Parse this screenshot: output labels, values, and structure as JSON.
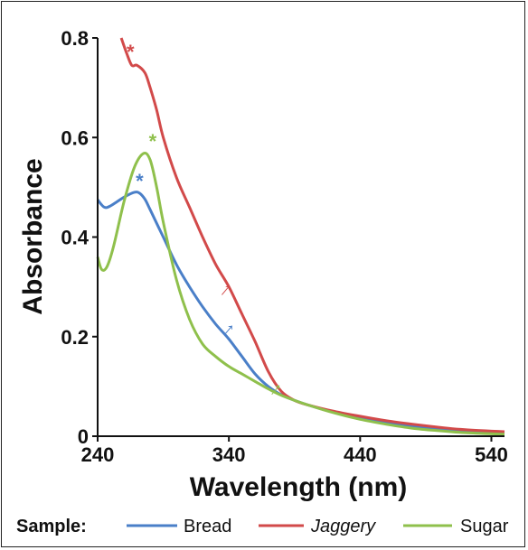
{
  "chart_data": {
    "type": "line",
    "xlabel": "Wavelength (nm)",
    "ylabel": "Absorbance",
    "xlim": [
      240,
      550
    ],
    "ylim": [
      0,
      0.8
    ],
    "xticks": [
      240,
      340,
      440,
      540
    ],
    "xtick_labels": [
      "240",
      "340",
      "440",
      "540"
    ],
    "yticks": [
      0,
      0.2,
      0.4,
      0.6,
      0.8
    ],
    "ytick_labels": [
      "0",
      "0.2",
      "0.4",
      "0.6",
      "0.8"
    ],
    "legend_title": "Sample:",
    "legend_position": "bottom",
    "series": [
      {
        "name": "Bread",
        "color": "#4a7fc8",
        "x": [
          240,
          245,
          250,
          260,
          268,
          272,
          276,
          280,
          290,
          300,
          310,
          320,
          330,
          340,
          350,
          360,
          370,
          380,
          390,
          400,
          420,
          440,
          460,
          480,
          500,
          520,
          550
        ],
        "y": [
          0.475,
          0.46,
          0.463,
          0.48,
          0.49,
          0.488,
          0.476,
          0.455,
          0.4,
          0.345,
          0.3,
          0.26,
          0.225,
          0.195,
          0.16,
          0.125,
          0.1,
          0.083,
          0.072,
          0.063,
          0.048,
          0.037,
          0.027,
          0.02,
          0.014,
          0.01,
          0.006
        ],
        "annotations": [
          {
            "label": "*",
            "x": 272,
            "y": 0.495
          },
          {
            "label": "↑",
            "x": 337,
            "y": 0.205
          }
        ]
      },
      {
        "name": "Jaggery",
        "color": "#d24a4a",
        "x": [
          258,
          262,
          266,
          270,
          276,
          280,
          285,
          290,
          300,
          310,
          320,
          330,
          340,
          350,
          360,
          370,
          380,
          390,
          400,
          420,
          440,
          460,
          480,
          500,
          520,
          550
        ],
        "y": [
          0.8,
          0.77,
          0.745,
          0.745,
          0.73,
          0.7,
          0.655,
          0.6,
          0.52,
          0.46,
          0.4,
          0.345,
          0.3,
          0.245,
          0.19,
          0.13,
          0.09,
          0.072,
          0.063,
          0.05,
          0.04,
          0.031,
          0.024,
          0.018,
          0.013,
          0.009
        ],
        "annotations": [
          {
            "label": "*",
            "x": 265,
            "y": 0.755
          },
          {
            "label": "↑",
            "x": 335,
            "y": 0.285
          }
        ]
      },
      {
        "name": "Sugar",
        "color": "#8fc04c",
        "x": [
          240,
          243,
          247,
          252,
          260,
          268,
          275,
          280,
          285,
          290,
          300,
          310,
          320,
          330,
          340,
          350,
          360,
          370,
          380,
          390,
          400,
          420,
          440,
          460,
          480,
          500,
          520,
          550
        ],
        "y": [
          0.36,
          0.335,
          0.34,
          0.38,
          0.47,
          0.54,
          0.568,
          0.555,
          0.5,
          0.43,
          0.315,
          0.235,
          0.185,
          0.16,
          0.14,
          0.125,
          0.11,
          0.095,
          0.082,
          0.072,
          0.063,
          0.047,
          0.034,
          0.024,
          0.016,
          0.011,
          0.007,
          0.004
        ],
        "annotations": [
          {
            "label": "*",
            "x": 282,
            "y": 0.575
          },
          {
            "label": "↑",
            "x": 373,
            "y": 0.085
          }
        ]
      }
    ]
  }
}
